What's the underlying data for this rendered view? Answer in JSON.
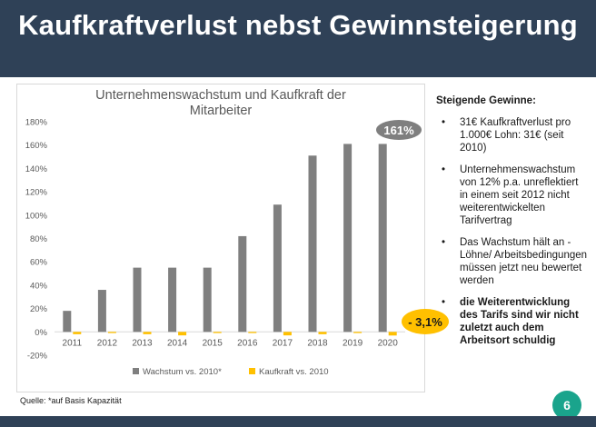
{
  "slide": {
    "title": "Kaufkraftverlust nebst Gewinnsteigerung",
    "page_number": "6",
    "source": "Quelle: *auf Basis Kapazität"
  },
  "colors": {
    "header_band": "#2f4157",
    "series_growth": "#7f7f7f",
    "series_kaufkraft": "#ffc000",
    "page_badge": "#1aa48c"
  },
  "badges": {
    "top": "161%",
    "low": "- 3,1%"
  },
  "side_panel": {
    "heading": "Steigende Gewinne:",
    "bullets": [
      {
        "bullet": "•",
        "text": "31€ Kaufkraftverlust pro 1.000€ Lohn: 31€ (seit 2010)",
        "bold": false
      },
      {
        "bullet": "•",
        "text": "Unternehmenswachstum von 12% p.a. unreflektiert in einem seit 2012 nicht weiterentwickelten Tarifvertrag",
        "bold": false
      },
      {
        "bullet": "•",
        "text": "Das Wachstum hält an - Löhne/ Arbeitsbedingungen müssen jetzt neu bewertet werden",
        "bold": false
      },
      {
        "bullet": "•",
        "text": "die Weiterentwicklung des Tarifs sind wir nicht zuletzt auch dem Arbeitsort schuldig",
        "bold": true
      }
    ]
  },
  "chart_data": {
    "type": "bar",
    "title": "Unternehmenswachstum und Kaufkraft der Mitarbeiter",
    "title_lines": [
      "Unternehmenswachstum und Kaufkraft der",
      "Mitarbeiter"
    ],
    "categories": [
      "2011",
      "2012",
      "2013",
      "2014",
      "2015",
      "2016",
      "2017",
      "2018",
      "2019",
      "2020"
    ],
    "series": [
      {
        "name": "Wachstum vs. 2010*",
        "values": [
          18,
          36,
          55,
          55,
          55,
          82,
          109,
          151,
          161,
          161
        ]
      },
      {
        "name": "Kaufkraft vs. 2010",
        "values": [
          -2,
          -1,
          -2,
          -3,
          -1,
          -1,
          -3,
          -2,
          -1,
          -3.1
        ]
      }
    ],
    "ylim": [
      -20,
      180
    ],
    "yticks": [
      -20,
      0,
      20,
      40,
      60,
      80,
      100,
      120,
      140,
      160,
      180
    ],
    "ytick_labels": [
      "-20%",
      "0%",
      "20%",
      "40%",
      "60%",
      "80%",
      "100%",
      "120%",
      "140%",
      "160%",
      "180%"
    ],
    "grid": false,
    "legend_position": "bottom",
    "xlabel": "",
    "ylabel": ""
  }
}
